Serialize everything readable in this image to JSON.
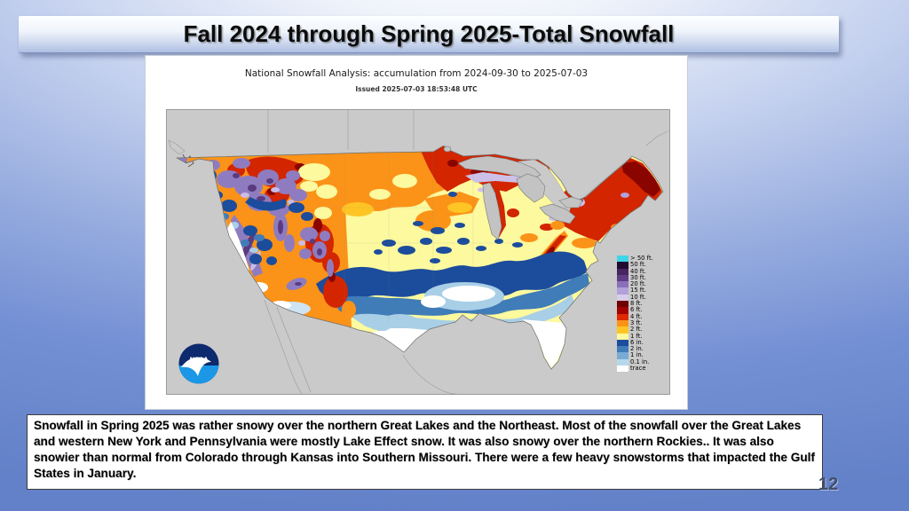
{
  "slide": {
    "title": "Fall 2024 through Spring 2025-Total Snowfall",
    "page_number": "12",
    "body_text": "Snowfall in Spring 2025 was rather snowy over the northern Great Lakes and the Northeast. Most of the snowfall over the Great Lakes and western New York and Pennsylvania were mostly Lake Effect snow.  It was also snowy over the northern Rockies.. It was also snowier than normal from Colorado through Kansas into Southern Missouri.  There were a few heavy snowstorms that impacted the Gulf States in January."
  },
  "map_figure": {
    "title": "National Snowfall Analysis: accumulation from 2024-09-30 to 2025-07-03",
    "issued": "Issued 2025-07-03 18:53:48 UTC",
    "logo_text": "NOAA",
    "legend": {
      "items": [
        {
          "label": "> 50 ft.",
          "color": "#3ed5e8"
        },
        {
          "label": "50 ft.",
          "color": "#200c2e"
        },
        {
          "label": "40 ft.",
          "color": "#472561"
        },
        {
          "label": "30 ft.",
          "color": "#5f3d85"
        },
        {
          "label": "20 ft.",
          "color": "#8a70b8"
        },
        {
          "label": "15 ft.",
          "color": "#b2a0d8"
        },
        {
          "label": "10 ft.",
          "color": "#d7cdec"
        },
        {
          "label": "8 ft.",
          "color": "#6f0000"
        },
        {
          "label": "6 ft.",
          "color": "#a50000"
        },
        {
          "label": "4 ft.",
          "color": "#df2a00"
        },
        {
          "label": "3 ft.",
          "color": "#fb9318"
        },
        {
          "label": "2 ft.",
          "color": "#ffc524"
        },
        {
          "label": "1 ft.",
          "color": "#fcf99e"
        },
        {
          "label": "6 in.",
          "color": "#1c4c9c"
        },
        {
          "label": "2 in.",
          "color": "#3f7cb8"
        },
        {
          "label": "1 in.",
          "color": "#79abd4"
        },
        {
          "label": "0.1 in.",
          "color": "#b6d8eb"
        },
        {
          "label": "trace",
          "color": "#ffffff"
        }
      ]
    }
  }
}
